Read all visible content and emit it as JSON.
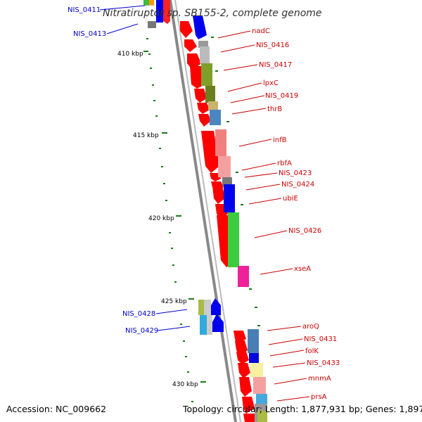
{
  "title": "Nitratiruptor sp. SB155-2, complete genome",
  "footer": {
    "accession": "Accession: NC_009662",
    "topology": "Topology: circular; Length: 1,877,931 bp; Genes: 1,897"
  },
  "colors": {
    "forward_label": "#cc0000",
    "reverse_label": "#0000cc",
    "backbone": "#888888",
    "tick_mark": "#1a7a1a"
  },
  "ticks": [
    "410 kbp",
    "415 kbp",
    "420 kbp",
    "425 kbp",
    "430 kbp"
  ],
  "genes_right": [
    {
      "label": "nadC"
    },
    {
      "label": "NIS_0416"
    },
    {
      "label": "NIS_0417"
    },
    {
      "label": "lpxC"
    },
    {
      "label": "NIS_0419"
    },
    {
      "label": "thrB"
    },
    {
      "label": "infB"
    },
    {
      "label": "rbfA"
    },
    {
      "label": "NIS_0423"
    },
    {
      "label": "NIS_0424"
    },
    {
      "label": "ubiE"
    },
    {
      "label": "NIS_0426"
    },
    {
      "label": "xseA"
    },
    {
      "label": "aroQ"
    },
    {
      "label": "NIS_0431"
    },
    {
      "label": "folK"
    },
    {
      "label": "NIS_0433"
    },
    {
      "label": "mnmA"
    },
    {
      "label": "prsA"
    }
  ],
  "genes_left": [
    {
      "label": "NIS_0411"
    },
    {
      "label": "NIS_0413"
    },
    {
      "label": "NIS_0428"
    },
    {
      "label": "NIS_0429"
    }
  ]
}
